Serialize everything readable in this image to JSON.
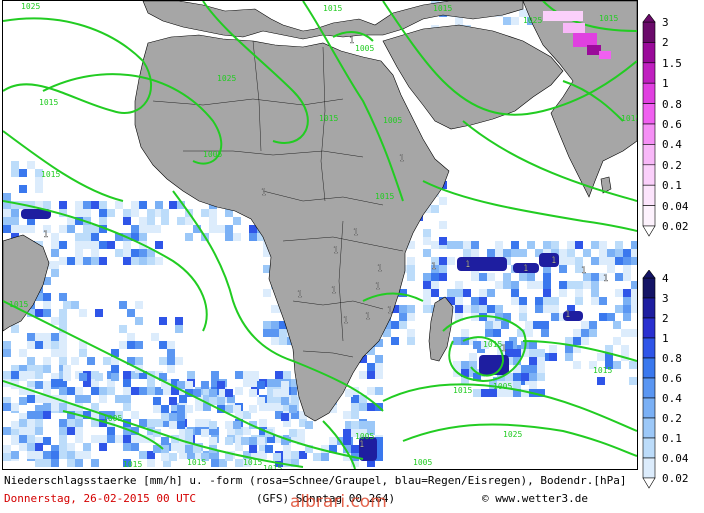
{
  "legend_top": {
    "name": "pink-snow-scale",
    "labels": [
      "3",
      "2",
      "1.5",
      "1",
      "0.8",
      "0.6",
      "0.4",
      "0.2",
      "0.1",
      "0.04",
      "0.02"
    ],
    "colors": [
      "#6a0a6a",
      "#9a0a9a",
      "#c020c0",
      "#e040e0",
      "#f060f0",
      "#f590f5",
      "#f8b8f8",
      "#fbd0fb",
      "#fce4fc",
      "#fdf2fd",
      "#ffffff"
    ]
  },
  "legend_bottom": {
    "name": "blue-rain-scale",
    "labels": [
      "4",
      "3",
      "2",
      "1",
      "0.8",
      "0.6",
      "0.4",
      "0.2",
      "0.1",
      "0.04",
      "0.02"
    ],
    "colors": [
      "#141466",
      "#1e1ea0",
      "#2a30d0",
      "#2f55e8",
      "#3a78ee",
      "#5a96f2",
      "#7ab0f5",
      "#9cc8f8",
      "#bcdcfa",
      "#dcecfc",
      "#ffffff"
    ]
  },
  "isobars": {
    "color": "#22cc22",
    "labels": [
      {
        "t": "1025"
      },
      {
        "t": "1015"
      },
      {
        "t": "1015"
      },
      {
        "t": "1025"
      },
      {
        "t": "1015"
      },
      {
        "t": "1005"
      },
      {
        "t": "1025"
      },
      {
        "t": "1015"
      },
      {
        "t": "1015"
      },
      {
        "t": "1005"
      },
      {
        "t": "1015"
      },
      {
        "t": "1005"
      },
      {
        "t": "1015"
      },
      {
        "t": "1015"
      },
      {
        "t": "1015"
      },
      {
        "t": "1005"
      },
      {
        "t": "1015"
      },
      {
        "t": "1015"
      },
      {
        "t": "1005"
      },
      {
        "t": "1015"
      },
      {
        "t": "1025"
      },
      {
        "t": "1015"
      },
      {
        "t": "1015"
      },
      {
        "t": "1005"
      },
      {
        "t": "1015"
      },
      {
        "t": "1005"
      },
      {
        "t": "1015"
      }
    ]
  },
  "precip_markers": [
    "1",
    "1",
    "1",
    "1",
    "1",
    "1",
    "1",
    "1",
    "1",
    "1",
    "1",
    "1",
    "1",
    "1",
    "1",
    "1",
    "1",
    "1",
    "1",
    "1",
    "1",
    "1"
  ],
  "caption": {
    "line1": "Niederschlagsstaerke [mm/h] u. -form (rosa=Schnee/Graupel, blau=Regen/Eisregen), Bodendr.[hPa]",
    "date": "Donnerstag, 26-02-2015  00 UTC",
    "model": "(GFS)  Sonntag 00  264)",
    "copyright": "© www.wetter3.de"
  },
  "watermark": "albrari.com",
  "colors": {
    "land": "#a6a6a6",
    "sea": "#ffffff",
    "isobar": "#22cc22",
    "border": "#000000",
    "date": "#d40000"
  }
}
